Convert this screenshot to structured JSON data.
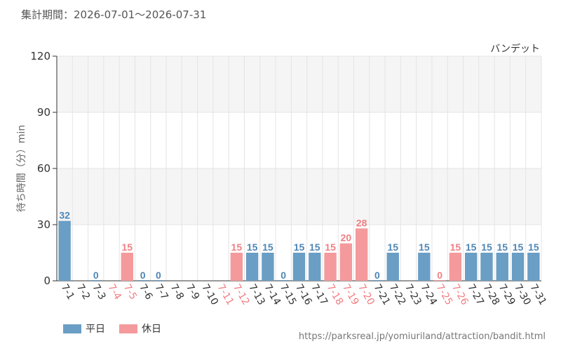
{
  "header": {
    "period_label": "集計期間：2026-07-01～2026-07-31"
  },
  "footer": {
    "source_url": "https://parksreal.jp/yomiuriland/attraction/bandit.html"
  },
  "colors": {
    "weekday": "#6a9ec4",
    "holiday": "#f49a9c",
    "weekday_label": "#4f86b5",
    "holiday_label": "#f07f83",
    "band": "#f5f5f5",
    "grid": "#e4e4e4",
    "axis": "#333333"
  },
  "chart_data": {
    "type": "bar",
    "title": "バンデット",
    "ylabel": "待ち時間（分）min",
    "xlabel": "",
    "ylim": [
      0,
      120
    ],
    "yticks": [
      "0",
      "30",
      "60",
      "90",
      "120"
    ],
    "categories": [
      "7-1",
      "7-2",
      "7-3",
      "7-4",
      "7-5",
      "7-6",
      "7-7",
      "7-8",
      "7-9",
      "7-10",
      "7-11",
      "7-12",
      "7-13",
      "7-14",
      "7-15",
      "7-16",
      "7-17",
      "7-18",
      "7-19",
      "7-20",
      "7-21",
      "7-22",
      "7-23",
      "7-24",
      "7-25",
      "7-26",
      "7-27",
      "7-28",
      "7-29",
      "7-30",
      "7-31"
    ],
    "values": [
      32,
      null,
      0,
      null,
      15,
      0,
      0,
      null,
      null,
      null,
      null,
      15,
      15,
      15,
      0,
      15,
      15,
      15,
      20,
      28,
      0,
      15,
      null,
      15,
      0,
      15,
      15,
      15,
      15,
      15,
      15
    ],
    "value_labels": [
      "32",
      "",
      "0",
      "",
      "15",
      "0",
      "0",
      "",
      "",
      "",
      "",
      "15",
      "15",
      "15",
      "0",
      "15",
      "15",
      "15",
      "20",
      "28",
      "0",
      "15",
      "",
      "15",
      "0",
      "15",
      "15",
      "15",
      "15",
      "15",
      "15"
    ],
    "day_type": [
      "weekday",
      "weekday",
      "weekday",
      "holiday",
      "holiday",
      "weekday",
      "weekday",
      "weekday",
      "weekday",
      "weekday",
      "holiday",
      "holiday",
      "weekday",
      "weekday",
      "weekday",
      "weekday",
      "weekday",
      "holiday",
      "holiday",
      "holiday",
      "weekday",
      "weekday",
      "weekday",
      "weekday",
      "holiday",
      "holiday",
      "weekday",
      "weekday",
      "weekday",
      "weekday",
      "weekday"
    ],
    "legend": [
      {
        "key": "weekday",
        "label": "平日"
      },
      {
        "key": "holiday",
        "label": "休日"
      }
    ],
    "legend_position": "bottom-left",
    "grid": true
  }
}
